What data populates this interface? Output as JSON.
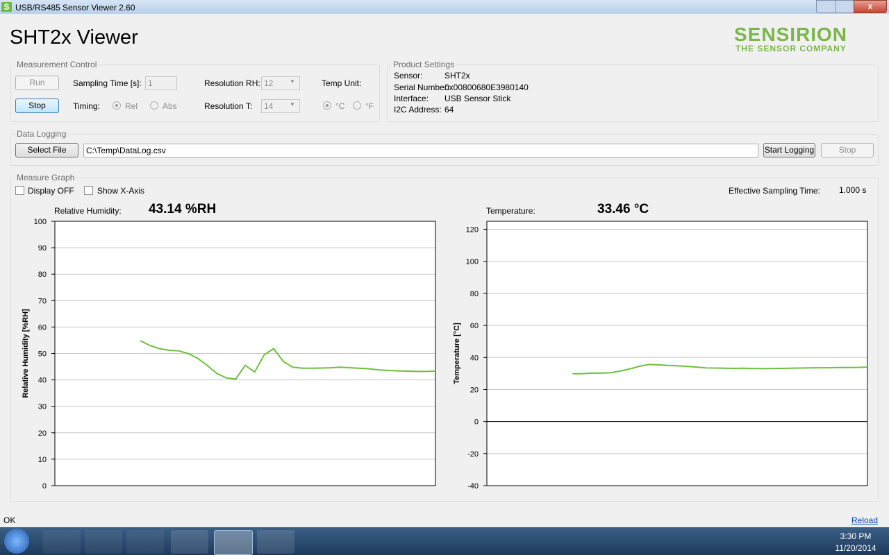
{
  "window": {
    "title": "USB/RS485 Sensor Viewer 2.60"
  },
  "header": {
    "title": "SHT2x Viewer",
    "logo": "SENSIRION",
    "tagline": "THE SENSOR COMPANY"
  },
  "measurement_control": {
    "label": "Measurement Control",
    "run": "Run",
    "stop": "Stop",
    "sampling_time_label": "Sampling Time [s]:",
    "sampling_time": "1",
    "timing_label": "Timing:",
    "timing_options": [
      "Rel",
      "Abs"
    ],
    "resolution_rh_label": "Resolution RH:",
    "resolution_rh": "12",
    "resolution_t_label": "Resolution T:",
    "resolution_t": "14",
    "temp_unit_label": "Temp Unit:",
    "temp_unit_options": [
      "°C",
      "°F"
    ]
  },
  "product_settings": {
    "label": "Product Settings",
    "rows": [
      [
        "Sensor:",
        "SHT2x"
      ],
      [
        "Serial Number:",
        "0x00800680E3980140"
      ],
      [
        "Interface:",
        "USB Sensor Stick"
      ],
      [
        "I2C Address:",
        "64"
      ]
    ]
  },
  "data_logging": {
    "label": "Data Logging",
    "select_file": "Select File",
    "path": "C:\\Temp\\DataLog.csv",
    "start_logging": "Start Logging",
    "stop": "Stop"
  },
  "measure_graph": {
    "label": "Measure Graph",
    "display_off": "Display OFF",
    "show_x_axis": "Show X-Axis",
    "effective_sampling_label": "Effective Sampling Time:",
    "effective_sampling": "1.000 s",
    "readouts": [
      {
        "label": "Relative Humidity:",
        "value": "43.14 %RH"
      },
      {
        "label": "Temperature:",
        "value": "33.46 °C"
      }
    ]
  },
  "chart_data": [
    {
      "type": "line",
      "ylabel": "Relative Humidity [%RH]",
      "ylim": [
        0,
        100
      ],
      "yticks": [
        0,
        10,
        20,
        30,
        40,
        50,
        60,
        70,
        80,
        90,
        100
      ],
      "grid": true,
      "series": [
        {
          "color": "#6cbf3c",
          "values": [
            null,
            null,
            null,
            null,
            null,
            null,
            null,
            null,
            null,
            54.8,
            53.0,
            51.8,
            51.2,
            51.0,
            50.0,
            48.2,
            45.5,
            42.5,
            40.8,
            40.3,
            45.5,
            43.0,
            49.5,
            51.8,
            47.0,
            44.8,
            44.4,
            44.4,
            44.5,
            44.6,
            44.8,
            44.6,
            44.4,
            44.2,
            43.8,
            43.6,
            43.4,
            43.3,
            43.2,
            43.2,
            43.3
          ]
        }
      ]
    },
    {
      "type": "line",
      "ylabel": "Temperature [°C]",
      "ylim": [
        -40,
        125
      ],
      "yticks": [
        -40,
        -20,
        0,
        20,
        40,
        60,
        80,
        100,
        120
      ],
      "grid": true,
      "series": [
        {
          "color": "#6cbf3c",
          "values": [
            null,
            null,
            null,
            null,
            null,
            null,
            null,
            null,
            null,
            29.8,
            29.9,
            30.2,
            30.3,
            30.4,
            31.5,
            32.8,
            34.5,
            35.6,
            35.4,
            35.0,
            34.8,
            34.5,
            34.0,
            33.5,
            33.4,
            33.3,
            33.2,
            33.3,
            33.1,
            33.0,
            33.1,
            33.2,
            33.3,
            33.4,
            33.5,
            33.6,
            33.6,
            33.7,
            33.7,
            33.8,
            34.0
          ]
        }
      ]
    }
  ],
  "status": {
    "text": "OK",
    "link": "Reload"
  },
  "taskbar": {
    "time": "3:30 PM",
    "date": "11/20/2014"
  }
}
